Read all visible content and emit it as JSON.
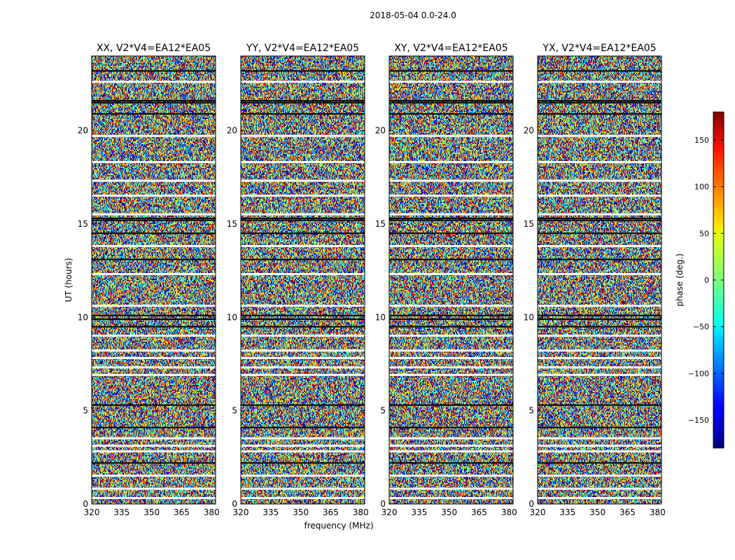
{
  "figure": {
    "suptitle": "2018-05-04 0.0-24.0",
    "ylabel": "UT (hours)",
    "xlabel": "frequency (MHz)"
  },
  "chart_data": {
    "type": "heatmap",
    "title": "2018-05-04 0.0-24.0",
    "xlabel": "frequency (MHz)",
    "ylabel": "UT (hours)",
    "xlim": [
      320,
      382
    ],
    "ylim": [
      0,
      24
    ],
    "x_ticks": [
      320,
      335,
      350,
      365,
      380
    ],
    "y_ticks": [
      0,
      5,
      10,
      15,
      20
    ],
    "panels": [
      {
        "name": "xx",
        "title": "XX, V2*V4=EA12*EA05"
      },
      {
        "name": "yy",
        "title": "YY, V2*V4=EA12*EA05"
      },
      {
        "name": "xy",
        "title": "XY, V2*V4=EA12*EA05"
      },
      {
        "name": "yx",
        "title": "YX, V2*V4=EA12*EA05"
      }
    ],
    "gap_hours": [
      0.3,
      0.8,
      1.5,
      2.8,
      3.1,
      3.5,
      6.9,
      7.3,
      7.8,
      8.2,
      9.0,
      10.6,
      12.3,
      13.8,
      15.5,
      16.5,
      17.3,
      18.3,
      19.7,
      22.6
    ],
    "black_lines_hours": [
      2.2,
      4.1,
      5.3,
      9.5,
      9.9,
      10.1,
      13.1,
      14.5,
      15.2,
      15.3,
      20.9,
      21.5,
      21.6,
      23.2
    ],
    "colorbar": {
      "label": "phase (deg.)",
      "range": [
        -180,
        180
      ],
      "ticks": [
        -150,
        -100,
        -50,
        0,
        50,
        100,
        150
      ],
      "tick_labels": [
        "−150",
        "−100",
        "−50",
        "0",
        "50",
        "100",
        "150"
      ],
      "colormap": "jet"
    }
  }
}
